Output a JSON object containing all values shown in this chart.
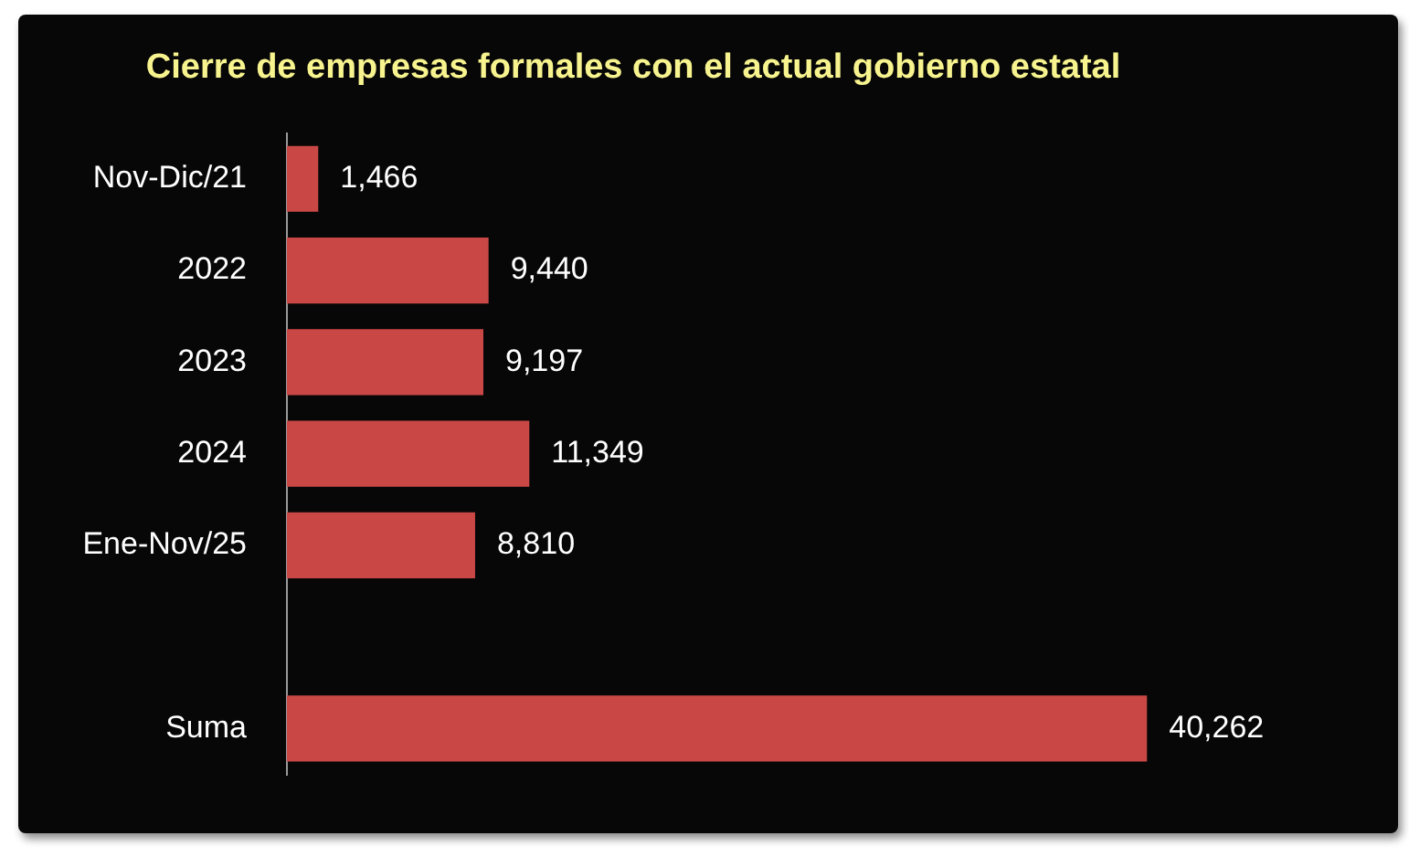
{
  "chart_data": {
    "type": "bar",
    "orientation": "horizontal",
    "title": "Cierre de empresas formales con el actual gobierno estatal",
    "categories": [
      "Nov-Dic/21",
      "2022",
      "2023",
      "2024",
      "Ene-Nov/25",
      null,
      "Suma"
    ],
    "values": [
      1466,
      9440,
      9197,
      11349,
      8810,
      null,
      40262
    ],
    "color": "#c94846",
    "value_labels": [
      "1,466",
      "9,440",
      "9,197",
      "11,349",
      "8,810",
      null,
      "40,262"
    ],
    "tick_labels": "y"
  }
}
